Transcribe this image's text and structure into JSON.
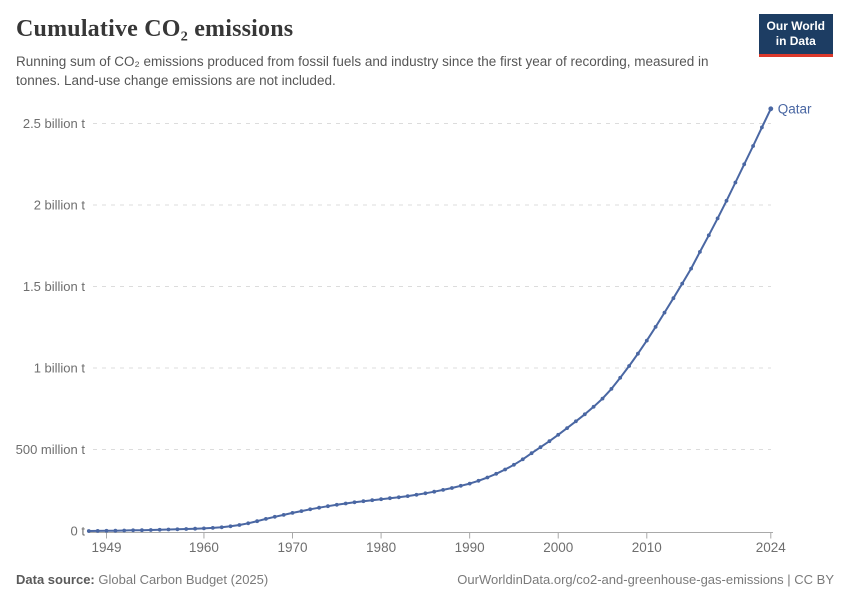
{
  "header": {
    "title": "Cumulative CO₂ emissions",
    "subtitle": "Running sum of CO₂ emissions produced from fossil fuels and industry since the first year of recording, measured in tonnes. Land-use change emissions are not included.",
    "logo": {
      "line1": "Our World",
      "line2": "in Data",
      "bg_color": "#1d3d63",
      "stripe_color": "#dc392b"
    }
  },
  "chart_data": {
    "type": "line",
    "title": "Cumulative CO₂ emissions",
    "unit_note": "values in million tonnes of CO₂",
    "xlim": [
      1947,
      2024
    ],
    "ylim_million_t": [
      0,
      2590
    ],
    "grid": "horizontal dashed",
    "legend_position": "end-of-line label",
    "line_color": "#4a67a3",
    "axis_color": "#a9a9a9",
    "grid_color": "#dcdcdc",
    "tick_label_color": "#6e6e6e",
    "x_ticks": [
      1949,
      1960,
      1970,
      1980,
      1990,
      2000,
      2010,
      2024
    ],
    "y_ticks": [
      {
        "value": 0,
        "label": "0 t"
      },
      {
        "value": 500,
        "label": "500 million t"
      },
      {
        "value": 1000,
        "label": "1 billion t"
      },
      {
        "value": 1500,
        "label": "1.5 billion t"
      },
      {
        "value": 2000,
        "label": "2 billion t"
      },
      {
        "value": 2500,
        "label": "2.5 billion t"
      }
    ],
    "x": [
      1947,
      1948,
      1949,
      1950,
      1951,
      1952,
      1953,
      1954,
      1955,
      1956,
      1957,
      1958,
      1959,
      1960,
      1961,
      1962,
      1963,
      1964,
      1965,
      1966,
      1967,
      1968,
      1969,
      1970,
      1971,
      1972,
      1973,
      1974,
      1975,
      1976,
      1977,
      1978,
      1979,
      1980,
      1981,
      1982,
      1983,
      1984,
      1985,
      1986,
      1987,
      1988,
      1989,
      1990,
      1991,
      1992,
      1993,
      1994,
      1995,
      1996,
      1997,
      1998,
      1999,
      2000,
      2001,
      2002,
      2003,
      2004,
      2005,
      2006,
      2007,
      2008,
      2009,
      2010,
      2011,
      2012,
      2013,
      2014,
      2015,
      2016,
      2017,
      2018,
      2019,
      2020,
      2021,
      2022,
      2023,
      2024
    ],
    "series": [
      {
        "name": "Qatar",
        "values": [
          0.2,
          0.6,
          1.2,
          2,
          3,
          4,
          5,
          6.2,
          7.5,
          9,
          10.5,
          12,
          14,
          16,
          19,
          23,
          29,
          37,
          47,
          60,
          74,
          87,
          99,
          111,
          122,
          133,
          143,
          152,
          161,
          169,
          176,
          183,
          189,
          195,
          201,
          207,
          214,
          222,
          231,
          241,
          252,
          264,
          277,
          291,
          308,
          328,
          351,
          377,
          406,
          440,
          477,
          514,
          551,
          590,
          631,
          673,
          716,
          762,
          812,
          872,
          940,
          1012,
          1088,
          1168,
          1252,
          1340,
          1428,
          1518,
          1610,
          1712,
          1814,
          1918,
          2026,
          2138,
          2250,
          2362,
          2476,
          2590
        ]
      }
    ]
  },
  "footer": {
    "source_label": "Data source:",
    "source_value": "Global Carbon Budget (2025)",
    "link_text": "OurWorldinData.org/co2-and-greenhouse-gas-emissions | CC BY"
  }
}
